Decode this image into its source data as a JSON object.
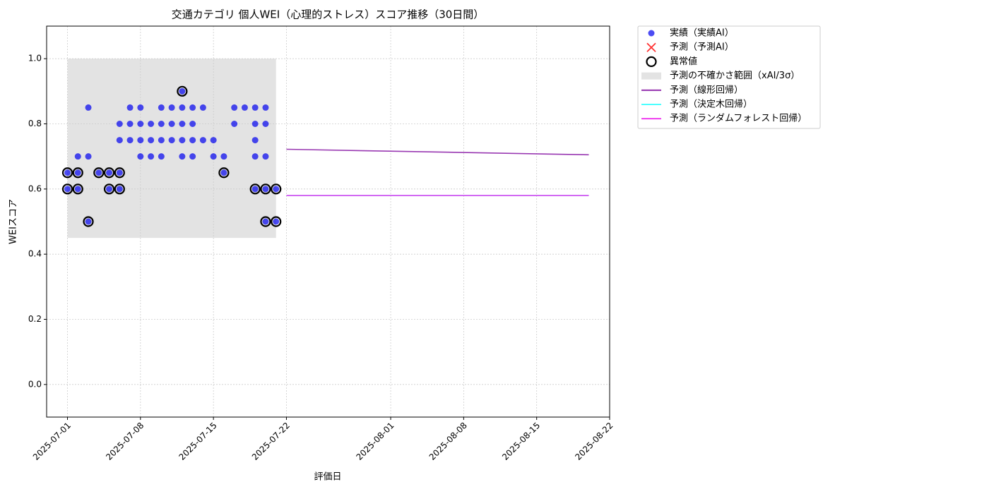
{
  "chart_data": {
    "type": "scatter",
    "title": "交通カテゴリ 個人WEI（心理的ストレス）スコア推移（30日間）",
    "xlabel": "評価日",
    "ylabel": "WEIスコア",
    "xlim": [
      "2025-06-29",
      "2025-08-22"
    ],
    "xticks": [
      "2025-07-01",
      "2025-07-08",
      "2025-07-15",
      "2025-07-22",
      "2025-08-01",
      "2025-08-08",
      "2025-08-15",
      "2025-08-22"
    ],
    "ylim": [
      -0.1,
      1.1
    ],
    "yticks": [
      {
        "value": 0,
        "label": "0.0"
      },
      0.2,
      0.4,
      0.6,
      0.8,
      {
        "value": 1,
        "label": "1.0"
      }
    ],
    "grid": true,
    "legend": "outside-right",
    "series": [
      {
        "name": "予測の不確かさ範囲（xAI/3σ）",
        "kind": "band",
        "color": "#cccccc",
        "x": [
          "2025-07-01",
          "2025-07-21"
        ],
        "lower": 0.45,
        "upper": 1.0
      },
      {
        "name": "実績（実績AI）",
        "kind": "points",
        "marker": "dot",
        "color": "#0000ee",
        "x": [
          "2025-07-01",
          "2025-07-01",
          "2025-07-02",
          "2025-07-02",
          "2025-07-02",
          "2025-07-03",
          "2025-07-03",
          "2025-07-03",
          "2025-07-04",
          "2025-07-05",
          "2025-07-05",
          "2025-07-06",
          "2025-07-06",
          "2025-07-06",
          "2025-07-06",
          "2025-07-07",
          "2025-07-07",
          "2025-07-07",
          "2025-07-08",
          "2025-07-08",
          "2025-07-08",
          "2025-07-08",
          "2025-07-09",
          "2025-07-09",
          "2025-07-09",
          "2025-07-10",
          "2025-07-10",
          "2025-07-10",
          "2025-07-10",
          "2025-07-11",
          "2025-07-11",
          "2025-07-11",
          "2025-07-12",
          "2025-07-12",
          "2025-07-12",
          "2025-07-12",
          "2025-07-12",
          "2025-07-13",
          "2025-07-13",
          "2025-07-13",
          "2025-07-13",
          "2025-07-14",
          "2025-07-14",
          "2025-07-15",
          "2025-07-15",
          "2025-07-16",
          "2025-07-16",
          "2025-07-17",
          "2025-07-17",
          "2025-07-18",
          "2025-07-19",
          "2025-07-19",
          "2025-07-19",
          "2025-07-19",
          "2025-07-19",
          "2025-07-20",
          "2025-07-20",
          "2025-07-20",
          "2025-07-20",
          "2025-07-20",
          "2025-07-21",
          "2025-07-21"
        ],
        "values": [
          0.65,
          0.6,
          0.7,
          0.65,
          0.6,
          0.85,
          0.7,
          0.5,
          0.65,
          0.6,
          0.65,
          0.75,
          0.65,
          0.6,
          0.8,
          0.75,
          0.85,
          0.8,
          0.8,
          0.7,
          0.75,
          0.85,
          0.8,
          0.75,
          0.7,
          0.85,
          0.7,
          0.8,
          0.75,
          0.75,
          0.8,
          0.85,
          0.8,
          0.75,
          0.9,
          0.85,
          0.7,
          0.75,
          0.7,
          0.85,
          0.8,
          0.85,
          0.75,
          0.75,
          0.7,
          0.7,
          0.65,
          0.85,
          0.8,
          0.85,
          0.8,
          0.75,
          0.85,
          0.7,
          0.6,
          0.85,
          0.8,
          0.7,
          0.6,
          0.5,
          0.6,
          0.5
        ]
      },
      {
        "name": "予測（予測AI）",
        "kind": "points",
        "marker": "cross",
        "color": "#ff3333",
        "x": [],
        "values": []
      },
      {
        "name": "異常値",
        "kind": "points",
        "marker": "ring",
        "color": "#000000",
        "x": [
          "2025-07-01",
          "2025-07-01",
          "2025-07-02",
          "2025-07-02",
          "2025-07-03",
          "2025-07-04",
          "2025-07-05",
          "2025-07-05",
          "2025-07-06",
          "2025-07-06",
          "2025-07-12",
          "2025-07-16",
          "2025-07-19",
          "2025-07-20",
          "2025-07-20",
          "2025-07-21",
          "2025-07-21"
        ],
        "values": [
          0.65,
          0.6,
          0.65,
          0.6,
          0.5,
          0.65,
          0.6,
          0.65,
          0.65,
          0.6,
          0.9,
          0.65,
          0.6,
          0.6,
          0.5,
          0.6,
          0.5
        ]
      },
      {
        "name": "予測（線形回帰）",
        "kind": "line",
        "color": "#8e24aa",
        "x": [
          "2025-07-22",
          "2025-08-20"
        ],
        "values": [
          0.722,
          0.705
        ]
      },
      {
        "name": "予測（決定木回帰）",
        "kind": "line",
        "color": "#33ffff",
        "x": [
          "2025-07-22",
          "2025-08-20"
        ],
        "values": [
          0.58,
          0.58
        ]
      },
      {
        "name": "予測（ランダムフォレスト回帰）",
        "kind": "line",
        "color": "#ee33ee",
        "x": [
          "2025-07-22",
          "2025-08-20"
        ],
        "values": [
          0.58,
          0.58
        ]
      }
    ]
  }
}
